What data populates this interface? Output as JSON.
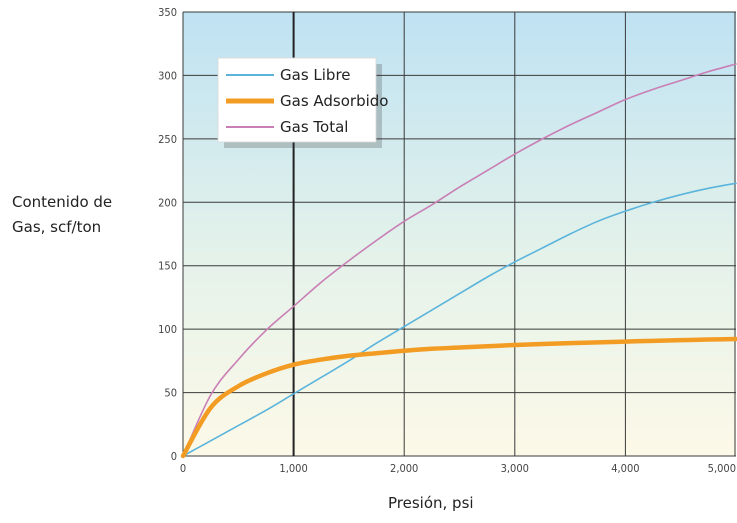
{
  "chart_data": {
    "type": "line",
    "title": "",
    "xlabel": "Presión, psi",
    "ylabel_lines": [
      "Contenido de",
      "Gas, scf/ton"
    ],
    "xlim": [
      0,
      5000
    ],
    "ylim": [
      0,
      350
    ],
    "x_ticks": [
      0,
      1000,
      2000,
      3000,
      4000,
      5000
    ],
    "x_tick_labels": [
      "0",
      "1,000",
      "2,000",
      "3,000",
      "4,000",
      "5,000"
    ],
    "y_ticks": [
      0,
      50,
      100,
      150,
      200,
      250,
      300,
      350
    ],
    "y_tick_labels": [
      "0",
      "50",
      "100",
      "150",
      "200",
      "250",
      "300",
      "350"
    ],
    "grid": true,
    "legend_position": "top-left",
    "x": [
      0,
      250,
      500,
      750,
      1000,
      1250,
      1500,
      1750,
      2000,
      2250,
      2500,
      2750,
      3000,
      3250,
      3500,
      3750,
      4000,
      4250,
      4500,
      4750,
      5000
    ],
    "series": [
      {
        "name": "Gas Libre",
        "color": "#5bb4dc",
        "values": [
          0,
          12,
          24,
          36,
          49,
          62,
          75,
          89,
          102,
          115,
          128,
          141,
          153,
          164,
          175,
          185,
          193,
          200,
          206,
          211,
          215
        ]
      },
      {
        "name": "Gas Adsorbido",
        "color": "#f39c24",
        "values": [
          0,
          38,
          55,
          65,
          72,
          76,
          79,
          81,
          83,
          84.5,
          85.5,
          86.5,
          87.5,
          88.3,
          89,
          89.6,
          90.2,
          90.8,
          91.3,
          91.8,
          92.2
        ]
      },
      {
        "name": "Gas Total",
        "color": "#c97fb5",
        "values": [
          0,
          48,
          76,
          99,
          118,
          137,
          154,
          170,
          185,
          198,
          212,
          225,
          238,
          250,
          261,
          271,
          281,
          289,
          296,
          303,
          309
        ]
      }
    ]
  }
}
